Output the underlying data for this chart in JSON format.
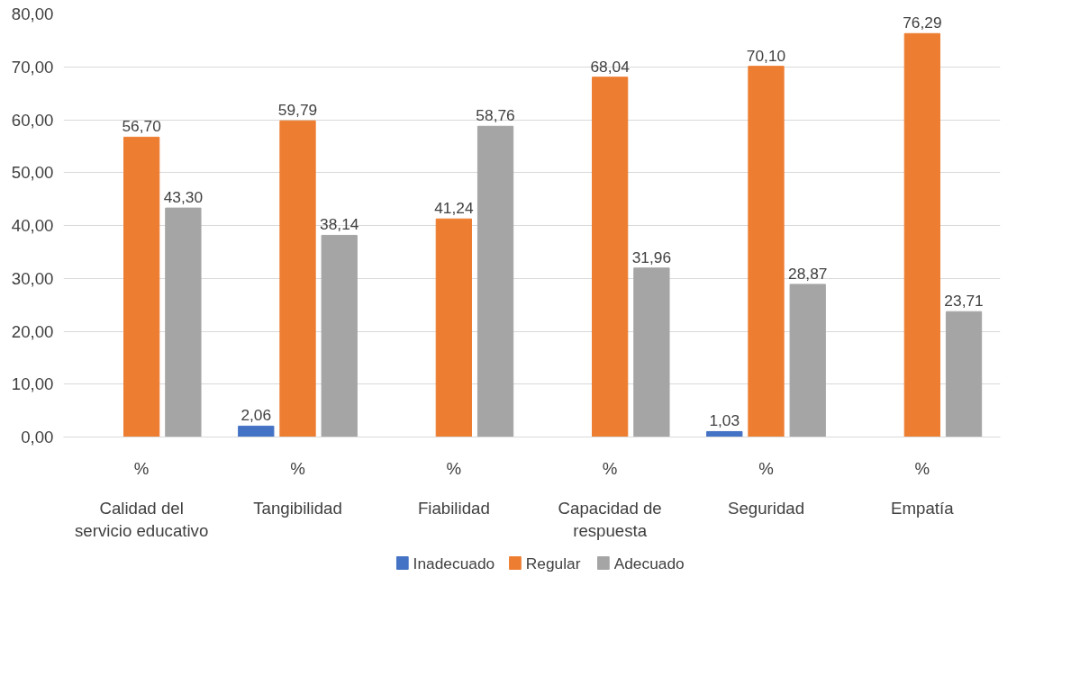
{
  "chart_data": {
    "type": "bar",
    "categories": [
      "Calidad del servicio educativo",
      "Tangibilidad",
      "Fiabilidad",
      "Capacidad de respuesta",
      "Seguridad",
      "Empatía"
    ],
    "series": [
      {
        "name": "Inadecuado",
        "color": "#4472c4",
        "values": [
          0,
          2.06,
          0,
          0,
          1.03,
          0
        ],
        "value_labels": [
          null,
          "2,06",
          null,
          null,
          "1,03",
          null
        ]
      },
      {
        "name": "Regular",
        "color": "#ed7d31",
        "values": [
          56.7,
          59.79,
          41.24,
          68.04,
          70.1,
          76.29
        ],
        "value_labels": [
          "56,70",
          "59,79",
          "41,24",
          "68,04",
          "70,10",
          "76,29"
        ]
      },
      {
        "name": "Adecuado",
        "color": "#a5a5a5",
        "values": [
          43.3,
          38.14,
          58.76,
          31.96,
          28.87,
          23.71
        ],
        "value_labels": [
          "43,30",
          "38,14",
          "58,76",
          "31,96",
          "28,87",
          "23,71"
        ]
      }
    ],
    "ylim": [
      0,
      80
    ],
    "yticks": [
      {
        "value": 0,
        "label": "0,00"
      },
      {
        "value": 10,
        "label": "10,00"
      },
      {
        "value": 20,
        "label": "20,00"
      },
      {
        "value": 30,
        "label": "30,00"
      },
      {
        "value": 40,
        "label": "40,00"
      },
      {
        "value": 50,
        "label": "50,00"
      },
      {
        "value": 60,
        "label": "60,00"
      },
      {
        "value": 70,
        "label": "70,00"
      },
      {
        "value": 80,
        "label": "80,00"
      }
    ],
    "annotations": [
      "%",
      "%",
      "%",
      "%",
      "%",
      "%"
    ],
    "grid": "y",
    "legend": "bottom"
  }
}
